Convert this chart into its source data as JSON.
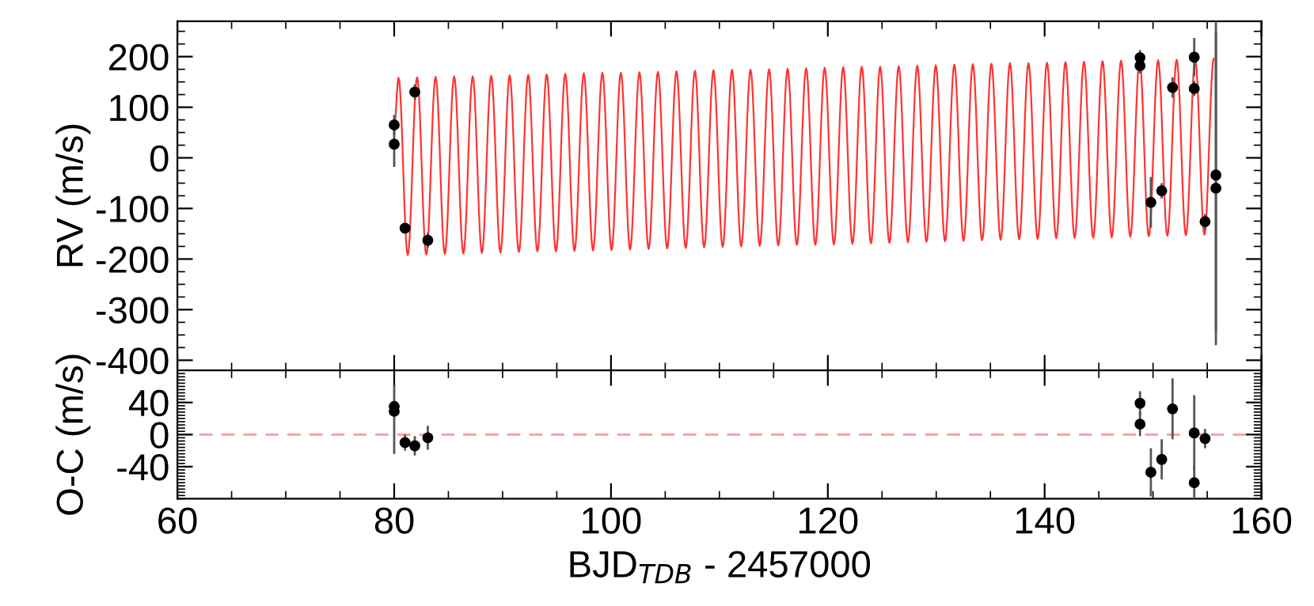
{
  "chart_data": [
    {
      "type": "scatter",
      "ylabel": "RV (m/s)",
      "xlim": [
        60,
        160
      ],
      "xticks": [
        60,
        80,
        100,
        120,
        140,
        160
      ],
      "ylim": [
        -420,
        270
      ],
      "yticks": [
        -400,
        -300,
        -200,
        -100,
        0,
        100,
        200
      ],
      "tick_labels": "y",
      "series": [
        {
          "type": "line",
          "color": "#ff3333",
          "x": [
            80.0,
            80.4,
            81.25,
            82.11,
            82.96,
            83.82,
            84.67,
            85.53,
            86.38,
            87.24,
            88.09,
            88.95,
            89.8,
            90.65,
            91.5,
            92.36,
            93.21,
            94.07,
            94.92,
            95.78,
            96.63,
            97.49,
            98.34,
            99.2,
            100.05,
            100.91,
            101.76,
            102.62,
            103.47,
            104.33,
            105.18,
            106.04,
            106.89,
            107.74,
            108.59,
            109.45,
            110.3,
            111.16,
            112.01,
            112.87,
            113.72,
            114.58,
            115.43,
            116.29,
            117.14,
            118.0,
            118.85,
            119.71,
            120.56,
            121.42,
            122.27,
            123.13,
            123.98,
            124.83,
            125.68,
            126.54,
            127.39,
            128.25,
            129.1,
            129.96,
            130.81,
            131.67,
            132.52,
            133.38,
            134.23,
            135.09,
            135.94,
            136.8,
            137.65,
            138.51,
            139.36,
            140.22,
            141.07,
            141.92,
            142.77,
            143.63,
            144.48,
            145.34,
            146.19,
            147.05,
            147.9,
            148.76,
            149.61,
            150.47,
            151.32,
            152.18,
            153.03,
            153.89,
            154.74,
            155.6
          ],
          "values": [
            60,
            158,
            -192,
            159,
            -191,
            160,
            -190,
            161,
            -189,
            161,
            -188,
            162,
            -187,
            163,
            -186,
            164,
            -185,
            165,
            -185,
            166,
            -184,
            167,
            -183,
            168,
            -182,
            168,
            -181,
            169,
            -180,
            170,
            -179,
            171,
            -178,
            172,
            -177,
            173,
            -176,
            174,
            -175,
            174,
            -174,
            175,
            -173,
            176,
            -172,
            177,
            -172,
            178,
            -171,
            179,
            -170,
            180,
            -169,
            180,
            -168,
            181,
            -167,
            182,
            -166,
            183,
            -165,
            184,
            -164,
            185,
            -163,
            186,
            -162,
            187,
            -161,
            187,
            -160,
            188,
            -159,
            189,
            -158,
            190,
            -158,
            191,
            -157,
            192,
            -156,
            193,
            -155,
            193,
            -154,
            194,
            -153,
            195,
            -152,
            196
          ]
        },
        {
          "marker": "circle",
          "color": "#000000",
          "x": [
            80.0,
            80.0,
            81.0,
            81.9,
            83.1,
            148.8,
            148.8,
            149.8,
            150.8,
            151.8,
            153.8,
            153.8,
            154.8,
            155.8,
            155.8
          ],
          "values": [
            65,
            27,
            -139,
            130,
            -163,
            198,
            182,
            -88,
            -65,
            139,
            199,
            137,
            -126,
            -34,
            -60
          ],
          "errors": [
            20,
            45,
            10,
            15,
            15,
            15,
            15,
            50,
            15,
            20,
            38,
            15,
            15,
            310,
            310
          ]
        }
      ]
    },
    {
      "type": "scatter",
      "ylabel": "O-C (m/s)",
      "xlabel": "BJD$_{TDB}$ - 2457000",
      "xlim": [
        60,
        160
      ],
      "xticks": [
        60,
        80,
        100,
        120,
        140,
        160
      ],
      "ylim": [
        -80,
        80
      ],
      "yticks": [
        -40,
        0,
        40
      ],
      "ref_lines": [
        {
          "axis": "y",
          "value": 0,
          "color": "#ff9999",
          "line_style": "dashed"
        }
      ],
      "series": [
        {
          "marker": "circle",
          "color": "#000000",
          "x": [
            80.0,
            80.0,
            81.0,
            81.9,
            83.1,
            148.8,
            148.8,
            149.8,
            150.8,
            151.8,
            153.8,
            153.8,
            154.8
          ],
          "values": [
            35,
            29,
            -10,
            -14,
            -4,
            39,
            13,
            -47,
            -31,
            32,
            2,
            -60,
            -5
          ],
          "errors": [
            [
              30,
              62
            ],
            [
              -24,
              32
            ],
            10,
            12,
            15,
            15,
            15,
            30,
            25,
            38,
            47,
            20,
            12
          ]
        }
      ]
    }
  ]
}
